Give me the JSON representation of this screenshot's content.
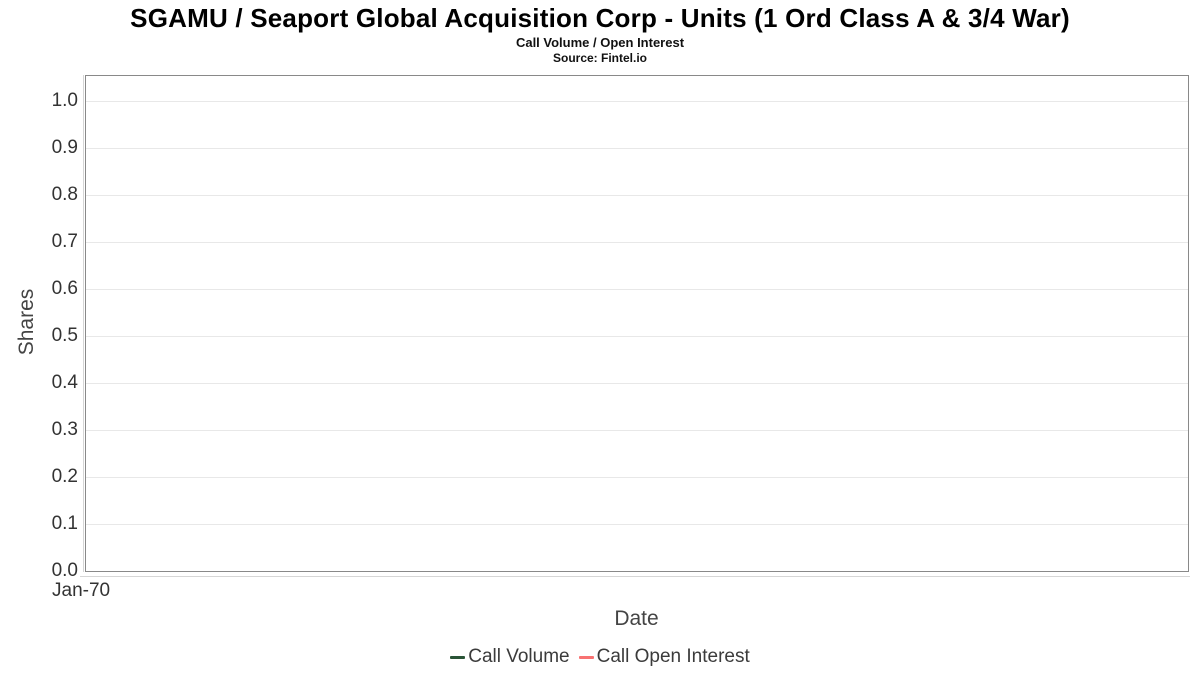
{
  "header": {
    "title": "SGAMU / Seaport Global Acquisition Corp - Units (1 Ord Class A & 3/4 War)",
    "subtitle": "Call Volume / Open Interest",
    "source": "Source: Fintel.io"
  },
  "chart_data": {
    "type": "line",
    "title": "SGAMU / Seaport Global Acquisition Corp - Units (1 Ord Class A & 3/4 War)",
    "subtitle": "Call Volume / Open Interest",
    "source": "Source: Fintel.io",
    "xlabel": "Date",
    "ylabel": "Shares",
    "x_tick_labels": [
      "Jan-70"
    ],
    "y_tick_values": [
      0.0,
      0.1,
      0.2,
      0.3,
      0.4,
      0.5,
      0.6,
      0.7,
      0.8,
      0.9,
      1.0
    ],
    "y_tick_labels": [
      "0.0",
      "0.1",
      "0.2",
      "0.3",
      "0.4",
      "0.5",
      "0.6",
      "0.7",
      "0.8",
      "0.9",
      "1.0"
    ],
    "ylim": [
      0,
      1.055
    ],
    "grid": "horizontal-only",
    "legend_position": "bottom-center",
    "series": [
      {
        "name": "Call Volume",
        "color": "#2a5437",
        "x": [],
        "values": []
      },
      {
        "name": "Call Open Interest",
        "color": "#f87272",
        "x": [],
        "values": []
      }
    ]
  },
  "legend": {
    "items": [
      {
        "label": "Call Volume",
        "color": "#2a5437"
      },
      {
        "label": "Call Open Interest",
        "color": "#f87272"
      }
    ]
  },
  "colors": {
    "call_volume": "#2a5437",
    "call_open_interest": "#f87272",
    "gridline": "#e8e8e8",
    "plot_border": "#898989",
    "axis_line": "#d6d6d6",
    "tick_text": "#333333",
    "axis_title_text": "#444444"
  }
}
